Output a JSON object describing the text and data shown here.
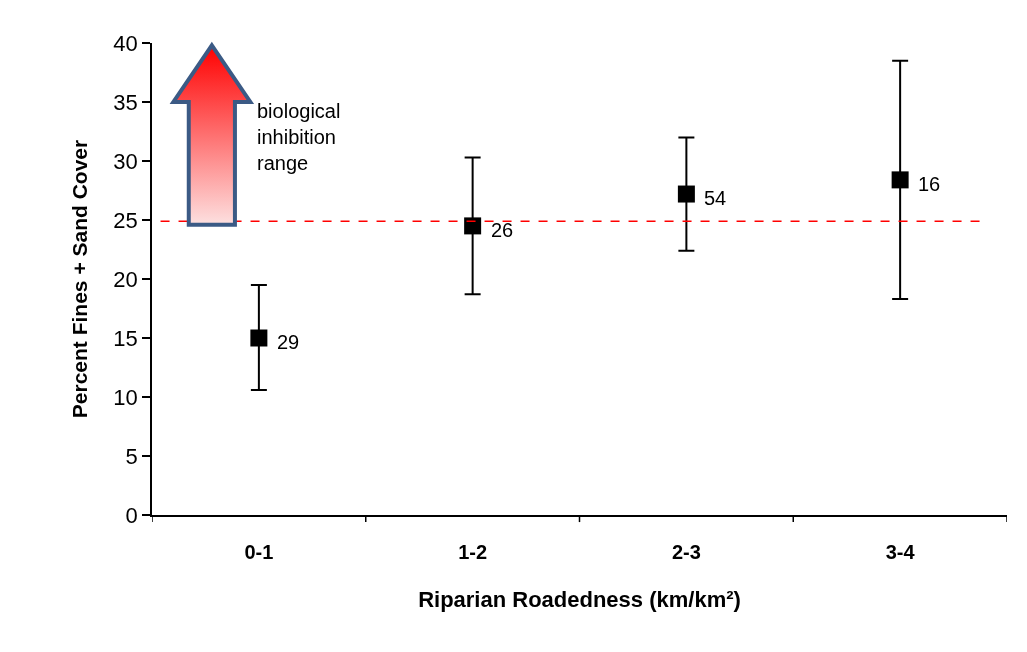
{
  "chart_data": {
    "type": "scatter",
    "xlabel": "Riparian Roadedness (km/km²)",
    "ylabel": "Percent Fines + Sand Cover",
    "categories": [
      "0-1",
      "1-2",
      "2-3",
      "3-4"
    ],
    "values": [
      15.0,
      24.5,
      27.2,
      28.4
    ],
    "errors": [
      [
        10.6,
        19.5
      ],
      [
        18.7,
        30.3
      ],
      [
        22.4,
        32.0
      ],
      [
        18.3,
        38.5
      ]
    ],
    "color": "#000000",
    "marker": "square",
    "ylim": [
      0,
      40
    ],
    "yticks": [
      0,
      5,
      10,
      15,
      20,
      25,
      30,
      35,
      40
    ],
    "ref_lines": [
      {
        "axis": "y",
        "value": 24.9,
        "color": "#ff0000",
        "line_style": "dashed"
      }
    ],
    "annotations": [
      {
        "text": "29",
        "x": "0-1",
        "y": 15.0
      },
      {
        "text": "26",
        "x": "1-2",
        "y": 24.5
      },
      {
        "text": "54",
        "x": "2-3",
        "y": 27.2
      },
      {
        "text": "16",
        "x": "3-4",
        "y": 28.4
      },
      "biological inhibition range"
    ]
  }
}
